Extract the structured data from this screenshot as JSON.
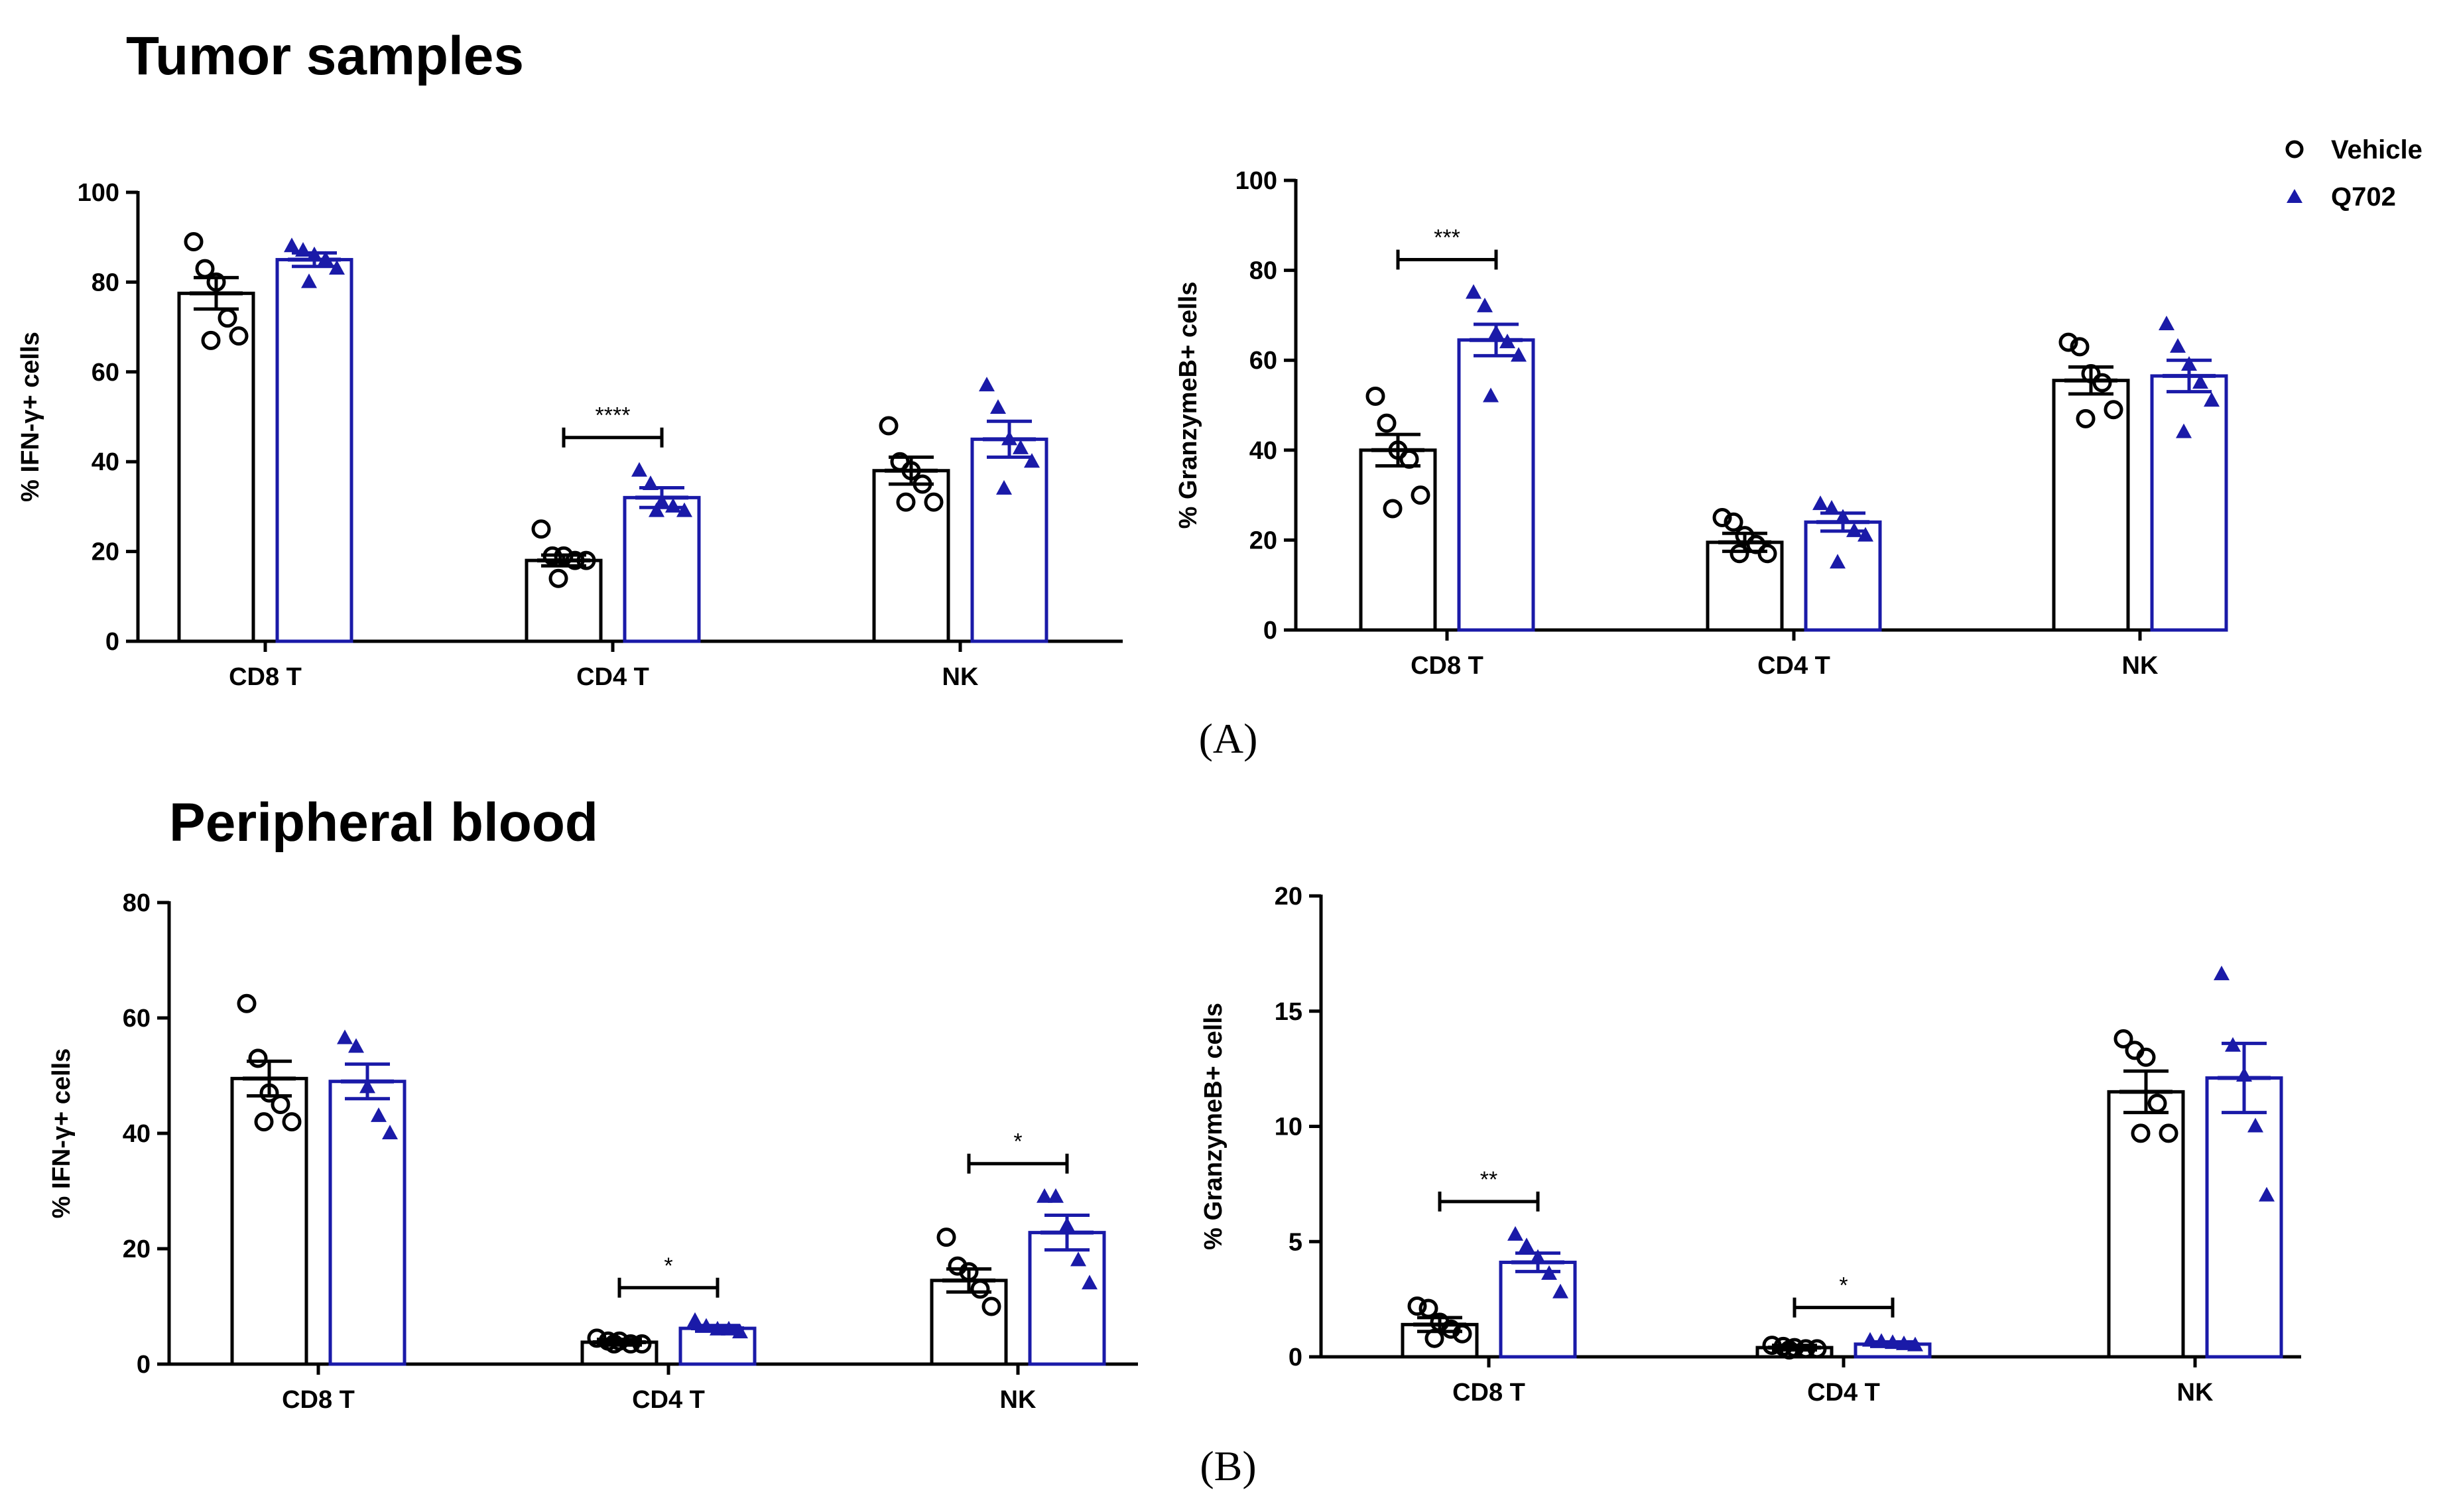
{
  "sections": {
    "tumor_title": "Tumor samples",
    "blood_title": "Peripheral blood",
    "panel_a_label": "(A)",
    "panel_b_label": "(B)"
  },
  "legend": {
    "vehicle": "Vehicle",
    "q702": "Q702"
  },
  "colors": {
    "vehicle": "#000000",
    "q702": "#1a1aa8"
  },
  "chart_data": [
    {
      "id": "tumor_ifn",
      "type": "bar",
      "ylabel": "% IFN-γ+ cells",
      "ylim": [
        0,
        100
      ],
      "yticks": [
        0,
        20,
        40,
        60,
        80,
        100
      ],
      "categories": [
        "CD8 T",
        "CD4 T",
        "NK"
      ],
      "series": [
        {
          "name": "Vehicle",
          "values": [
            77.5,
            18,
            38
          ],
          "sem": [
            3.5,
            1.2,
            3
          ],
          "points": [
            [
              89,
              83,
              80,
              72,
              68,
              67
            ],
            [
              25,
              19,
              19,
              18,
              18,
              14
            ],
            [
              48,
              40,
              38,
              35,
              31,
              31
            ]
          ]
        },
        {
          "name": "Q702",
          "values": [
            85,
            32,
            45
          ],
          "sem": [
            1.5,
            2.2,
            4
          ],
          "points": [
            [
              88,
              87,
              86,
              85,
              83,
              80
            ],
            [
              38,
              35,
              31,
              30,
              29,
              29
            ],
            [
              57,
              52,
              45,
              43,
              40,
              34
            ]
          ]
        }
      ],
      "significance": [
        {
          "category": "CD4 T",
          "label": "****"
        }
      ]
    },
    {
      "id": "tumor_gzmb",
      "type": "bar",
      "ylabel": "% GranzymeB+ cells",
      "ylim": [
        0,
        100
      ],
      "yticks": [
        0,
        20,
        40,
        60,
        80,
        100
      ],
      "categories": [
        "CD8 T",
        "CD4 T",
        "NK"
      ],
      "series": [
        {
          "name": "Vehicle",
          "values": [
            40,
            19.5,
            55.5
          ],
          "sem": [
            3.5,
            2,
            3
          ],
          "points": [
            [
              52,
              46,
              40,
              38,
              30,
              27
            ],
            [
              25,
              24,
              21,
              19,
              17,
              17
            ],
            [
              64,
              63,
              57,
              55,
              49,
              47
            ]
          ]
        },
        {
          "name": "Q702",
          "values": [
            64.5,
            24,
            56.5
          ],
          "sem": [
            3.5,
            2,
            3.5
          ],
          "points": [
            [
              75,
              72,
              66,
              64,
              61,
              52
            ],
            [
              28,
              27,
              25,
              22,
              21,
              15
            ],
            [
              68,
              63,
              59,
              55,
              51,
              44
            ]
          ]
        }
      ],
      "significance": [
        {
          "category": "CD8 T",
          "label": "***"
        }
      ]
    },
    {
      "id": "blood_ifn",
      "type": "bar",
      "ylabel": "% IFN-γ+ cells",
      "ylim": [
        0,
        80
      ],
      "yticks": [
        0,
        20,
        40,
        60,
        80
      ],
      "categories": [
        "CD8 T",
        "CD4 T",
        "NK"
      ],
      "series": [
        {
          "name": "Vehicle",
          "values": [
            49.5,
            3.8,
            14.5
          ],
          "sem": [
            3,
            0.5,
            2
          ],
          "points": [
            [
              62.5,
              53,
              47,
              45,
              42,
              42
            ],
            [
              4.5,
              4,
              4,
              3.5,
              3.5,
              3.5
            ],
            [
              22,
              17,
              16,
              13,
              10
            ]
          ]
        },
        {
          "name": "Q702",
          "values": [
            49,
            6.2,
            22.8
          ],
          "sem": [
            3,
            0.5,
            3
          ],
          "points": [
            [
              56.5,
              55,
              48,
              43,
              40
            ],
            [
              7.5,
              6.5,
              6,
              6,
              5.5
            ],
            [
              29,
              29,
              24,
              18,
              14
            ]
          ]
        }
      ],
      "significance": [
        {
          "category": "CD4 T",
          "label": "*"
        },
        {
          "category": "NK",
          "label": "*"
        }
      ]
    },
    {
      "id": "blood_gzmb",
      "type": "bar",
      "ylabel": "% GranzymeB+ cells",
      "ylim": [
        0,
        20
      ],
      "yticks": [
        0,
        5,
        10,
        15,
        20
      ],
      "categories": [
        "CD8 T",
        "CD4 T",
        "NK"
      ],
      "series": [
        {
          "name": "Vehicle",
          "values": [
            1.4,
            0.4,
            11.5
          ],
          "sem": [
            0.3,
            0.1,
            0.9
          ],
          "points": [
            [
              2.2,
              2.1,
              1.5,
              1.2,
              1,
              0.8
            ],
            [
              0.5,
              0.45,
              0.4,
              0.35,
              0.35,
              0.3
            ],
            [
              13.8,
              13.3,
              13,
              11,
              9.7,
              9.7
            ]
          ]
        },
        {
          "name": "Q702",
          "values": [
            4.1,
            0.55,
            12.1
          ],
          "sem": [
            0.4,
            0.1,
            1.5
          ],
          "points": [
            [
              5.3,
              4.8,
              4.3,
              3.6,
              2.8
            ],
            [
              0.7,
              0.65,
              0.6,
              0.55,
              0.5
            ],
            [
              16.6,
              13.5,
              12.2,
              10,
              7
            ]
          ]
        }
      ],
      "significance": [
        {
          "category": "CD8 T",
          "label": "**"
        },
        {
          "category": "CD4 T",
          "label": "*"
        }
      ]
    }
  ]
}
